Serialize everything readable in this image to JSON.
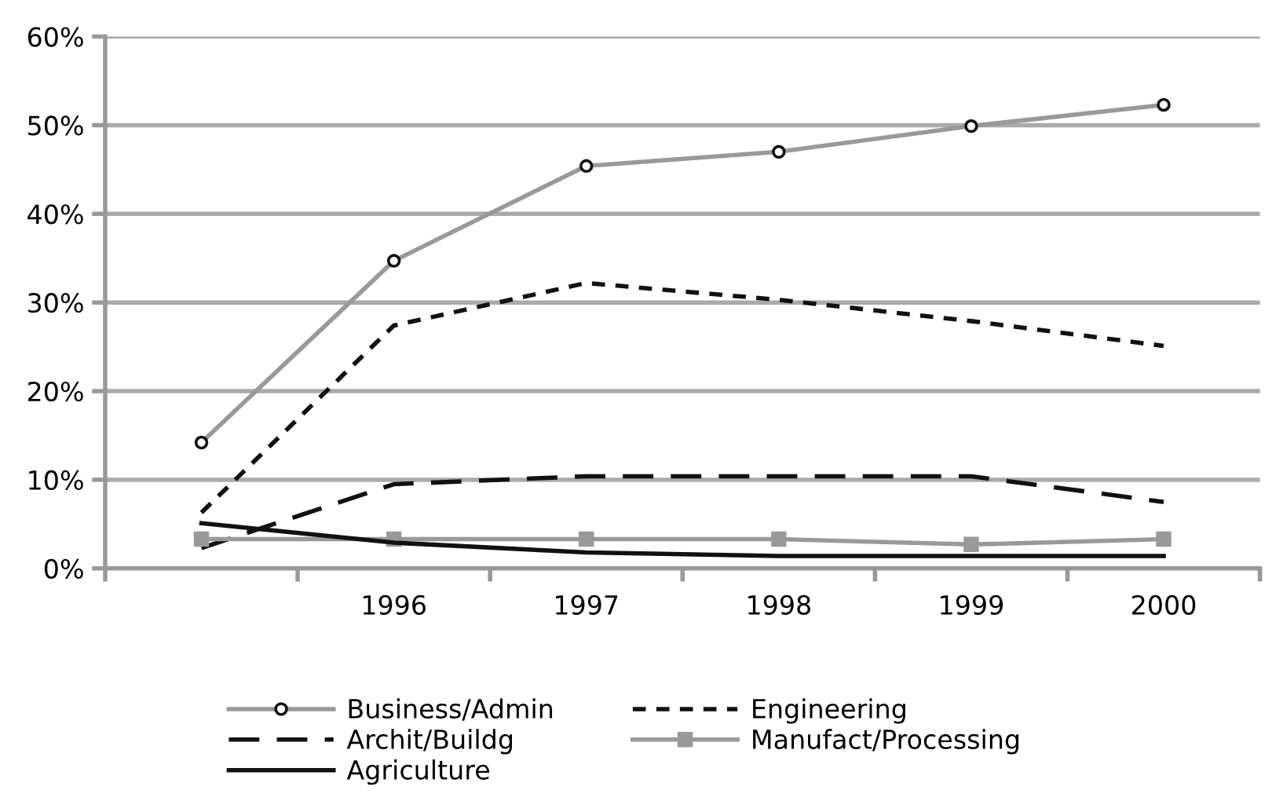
{
  "chart_data": {
    "type": "line",
    "categories": [
      null,
      "1996",
      "1997",
      "1998",
      "1999",
      "2000"
    ],
    "ylim": [
      0,
      60
    ],
    "yticks": [
      {
        "value": 0,
        "label": "0%"
      },
      {
        "value": 10,
        "label": "10%"
      },
      {
        "value": 20,
        "label": "20%"
      },
      {
        "value": 30,
        "label": "30%"
      },
      {
        "value": 40,
        "label": "40%"
      },
      {
        "value": 50,
        "label": "50%"
      },
      {
        "value": 60,
        "label": "60%"
      }
    ],
    "grid": "y",
    "legend": "bottom",
    "series": [
      {
        "name": "Business/Admin",
        "color": "#999999",
        "marker": "circle",
        "line_style": "solid",
        "values": [
          14.2,
          34.7,
          45.4,
          47.0,
          49.9,
          52.3
        ]
      },
      {
        "name": "Engineering",
        "color": "#111111",
        "marker": "none",
        "line_style": "dotted",
        "values": [
          6.3,
          27.4,
          32.2,
          30.3,
          27.9,
          25.1
        ]
      },
      {
        "name": "Archit/Buildg",
        "color": "#111111",
        "marker": "none",
        "line_style": "dashed",
        "values": [
          2.3,
          9.5,
          10.4,
          10.4,
          10.4,
          7.5
        ]
      },
      {
        "name": "Manufact/Processing",
        "color": "#999999",
        "marker": "square",
        "line_style": "solid",
        "values": [
          3.3,
          3.3,
          3.3,
          3.3,
          2.7,
          3.3
        ]
      },
      {
        "name": "Agriculture",
        "color": "#111111",
        "marker": "none",
        "line_style": "solid",
        "values": [
          5.1,
          2.9,
          1.8,
          1.4,
          1.4,
          1.4
        ]
      }
    ]
  }
}
